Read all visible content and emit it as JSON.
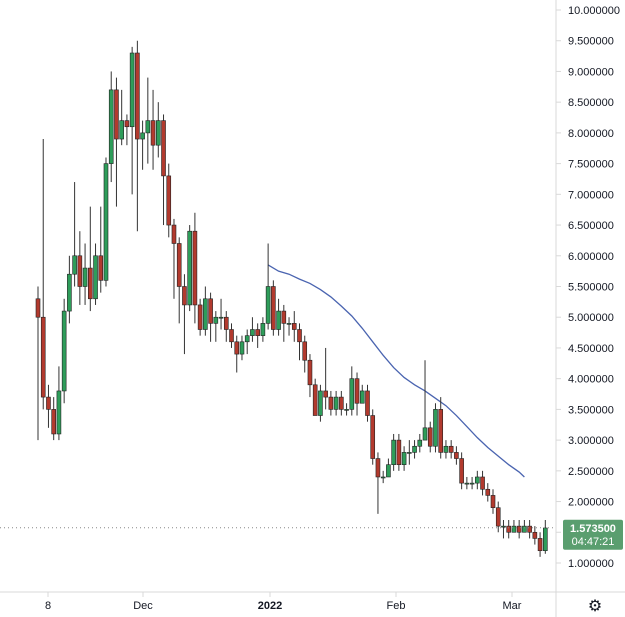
{
  "colors": {
    "up": "#26a69a",
    "down": "#a52a2a",
    "up_fill": "#2e9d5a",
    "down_fill": "#b23a2e",
    "wick": "#333333",
    "ma_line": "#4a64b0",
    "price_label_bg": "#5a9e6f",
    "axis": "#d9d9d9",
    "text": "#131722"
  },
  "chart_data": {
    "type": "candlestick",
    "yaxis_ticks": [
      "10.000000",
      "9.500000",
      "9.000000",
      "8.500000",
      "8.000000",
      "7.500000",
      "7.000000",
      "6.500000",
      "6.000000",
      "5.500000",
      "5.000000",
      "4.500000",
      "4.000000",
      "3.500000",
      "3.000000",
      "2.500000",
      "2.000000",
      "1.500000",
      "1.000000"
    ],
    "ylim": [
      0.5,
      10.0
    ],
    "xaxis_ticks": [
      "8",
      "Dec",
      "2022",
      "Feb",
      "Mar"
    ],
    "year_tick": "2022",
    "last_price": "1.573500",
    "countdown": "04:47:21",
    "last_value": 1.5735,
    "candles": [
      [
        5.3,
        5.0,
        5.5,
        3.0
      ],
      [
        5.0,
        3.7,
        7.9,
        3.5
      ],
      [
        3.7,
        3.5,
        3.9,
        3.2
      ],
      [
        3.5,
        3.1,
        3.7,
        3.0
      ],
      [
        3.1,
        3.8,
        4.2,
        3.0
      ],
      [
        3.8,
        5.1,
        5.3,
        3.6
      ],
      [
        5.1,
        5.7,
        6.0,
        4.9
      ],
      [
        5.7,
        6.0,
        7.2,
        5.5
      ],
      [
        6.0,
        5.5,
        6.4,
        5.2
      ],
      [
        5.5,
        5.8,
        6.2,
        5.2
      ],
      [
        5.8,
        5.3,
        6.8,
        5.1
      ],
      [
        5.3,
        6.0,
        6.2,
        5.2
      ],
      [
        6.0,
        5.6,
        6.8,
        5.4
      ],
      [
        5.6,
        7.5,
        7.6,
        5.5
      ],
      [
        7.5,
        8.7,
        9.0,
        7.2
      ],
      [
        8.7,
        7.9,
        8.9,
        6.8
      ],
      [
        7.9,
        8.2,
        8.7,
        7.8
      ],
      [
        8.2,
        8.1,
        8.3,
        7.8
      ],
      [
        8.1,
        9.3,
        9.4,
        7.0
      ],
      [
        9.3,
        7.9,
        9.5,
        6.4
      ],
      [
        7.9,
        8.0,
        8.2,
        7.4
      ],
      [
        8.0,
        8.2,
        8.9,
        7.5
      ],
      [
        8.2,
        7.8,
        8.7,
        7.4
      ],
      [
        7.8,
        8.2,
        8.5,
        7.6
      ],
      [
        8.2,
        7.3,
        8.3,
        6.5
      ],
      [
        7.3,
        6.5,
        7.5,
        6.3
      ],
      [
        6.5,
        6.2,
        6.6,
        5.3
      ],
      [
        6.2,
        5.5,
        6.3,
        4.9
      ],
      [
        5.5,
        5.2,
        5.7,
        4.4
      ],
      [
        5.2,
        6.4,
        6.5,
        5.1
      ],
      [
        6.4,
        5.2,
        6.7,
        4.9
      ],
      [
        5.2,
        4.8,
        5.3,
        4.7
      ],
      [
        4.8,
        5.3,
        5.5,
        4.7
      ],
      [
        5.3,
        4.9,
        5.4,
        4.6
      ],
      [
        4.9,
        5.0,
        5.1,
        4.6
      ],
      [
        5.0,
        5.0,
        5.3,
        4.8
      ],
      [
        5.0,
        4.8,
        5.1,
        4.6
      ],
      [
        4.8,
        4.6,
        4.9,
        4.5
      ],
      [
        4.6,
        4.4,
        4.7,
        4.1
      ],
      [
        4.4,
        4.6,
        4.7,
        4.3
      ],
      [
        4.6,
        4.7,
        4.8,
        4.4
      ],
      [
        4.7,
        4.8,
        5.0,
        4.6
      ],
      [
        4.8,
        4.7,
        4.9,
        4.5
      ],
      [
        4.7,
        4.9,
        5.0,
        4.6
      ],
      [
        4.9,
        5.5,
        6.2,
        4.8
      ],
      [
        5.5,
        4.8,
        5.6,
        4.7
      ],
      [
        4.8,
        5.1,
        5.3,
        4.7
      ],
      [
        5.1,
        4.9,
        5.2,
        4.6
      ],
      [
        4.9,
        4.9,
        5.0,
        4.7
      ],
      [
        4.9,
        4.8,
        5.1,
        4.6
      ],
      [
        4.8,
        4.6,
        4.9,
        4.3
      ],
      [
        4.6,
        4.3,
        4.7,
        4.1
      ],
      [
        4.3,
        3.9,
        4.4,
        3.7
      ],
      [
        3.9,
        3.4,
        4.0,
        3.4
      ],
      [
        3.4,
        3.8,
        3.9,
        3.3
      ],
      [
        3.8,
        3.7,
        4.5,
        3.5
      ],
      [
        3.7,
        3.5,
        3.8,
        3.4
      ],
      [
        3.5,
        3.7,
        3.8,
        3.4
      ],
      [
        3.7,
        3.5,
        3.8,
        3.4
      ],
      [
        3.5,
        3.5,
        3.6,
        3.4
      ],
      [
        3.5,
        4.0,
        4.2,
        3.4
      ],
      [
        4.0,
        3.6,
        4.1,
        3.4
      ],
      [
        3.6,
        3.8,
        3.9,
        3.6
      ],
      [
        3.8,
        3.4,
        3.9,
        3.3
      ],
      [
        3.4,
        2.7,
        3.5,
        2.6
      ],
      [
        2.7,
        2.4,
        2.8,
        1.8
      ],
      [
        2.4,
        2.4,
        2.5,
        2.3
      ],
      [
        2.4,
        2.6,
        2.7,
        2.4
      ],
      [
        2.6,
        3.0,
        3.1,
        2.5
      ],
      [
        3.0,
        2.6,
        3.1,
        2.5
      ],
      [
        2.6,
        2.8,
        2.9,
        2.5
      ],
      [
        2.8,
        2.8,
        3.0,
        2.6
      ],
      [
        2.8,
        2.9,
        3.0,
        2.7
      ],
      [
        2.9,
        3.0,
        3.1,
        2.8
      ],
      [
        3.0,
        3.2,
        4.3,
        3.0
      ],
      [
        3.2,
        2.9,
        3.3,
        2.8
      ],
      [
        2.9,
        3.5,
        3.6,
        2.8
      ],
      [
        3.5,
        2.8,
        3.7,
        2.7
      ],
      [
        2.8,
        2.9,
        3.0,
        2.7
      ],
      [
        2.9,
        2.8,
        3.0,
        2.7
      ],
      [
        2.8,
        2.7,
        2.9,
        2.6
      ],
      [
        2.7,
        2.3,
        2.8,
        2.2
      ],
      [
        2.3,
        2.3,
        2.4,
        2.2
      ],
      [
        2.3,
        2.3,
        2.4,
        2.2
      ],
      [
        2.3,
        2.4,
        2.5,
        2.2
      ],
      [
        2.4,
        2.2,
        2.5,
        2.1
      ],
      [
        2.2,
        2.1,
        2.3,
        2.0
      ],
      [
        2.1,
        1.9,
        2.2,
        1.8
      ],
      [
        1.9,
        1.6,
        2.0,
        1.5
      ],
      [
        1.6,
        1.6,
        1.7,
        1.4
      ],
      [
        1.6,
        1.5,
        1.7,
        1.4
      ],
      [
        1.5,
        1.6,
        1.7,
        1.5
      ],
      [
        1.6,
        1.5,
        1.7,
        1.4
      ],
      [
        1.5,
        1.6,
        1.7,
        1.5
      ],
      [
        1.6,
        1.5,
        1.7,
        1.4
      ],
      [
        1.5,
        1.4,
        1.6,
        1.3
      ],
      [
        1.4,
        1.2,
        1.5,
        1.1
      ],
      [
        1.2,
        1.57,
        1.7,
        1.15
      ]
    ],
    "moving_average": [
      [
        44,
        5.85
      ],
      [
        46,
        5.75
      ],
      [
        48,
        5.7
      ],
      [
        50,
        5.62
      ],
      [
        52,
        5.55
      ],
      [
        54,
        5.45
      ],
      [
        56,
        5.33
      ],
      [
        58,
        5.18
      ],
      [
        60,
        5.02
      ],
      [
        62,
        4.82
      ],
      [
        64,
        4.6
      ],
      [
        66,
        4.38
      ],
      [
        68,
        4.18
      ],
      [
        70,
        4.02
      ],
      [
        72,
        3.9
      ],
      [
        74,
        3.8
      ],
      [
        76,
        3.68
      ],
      [
        78,
        3.56
      ],
      [
        80,
        3.4
      ],
      [
        82,
        3.22
      ],
      [
        84,
        3.04
      ],
      [
        86,
        2.88
      ],
      [
        88,
        2.74
      ],
      [
        90,
        2.6
      ],
      [
        92,
        2.48
      ],
      [
        93,
        2.4
      ]
    ]
  }
}
